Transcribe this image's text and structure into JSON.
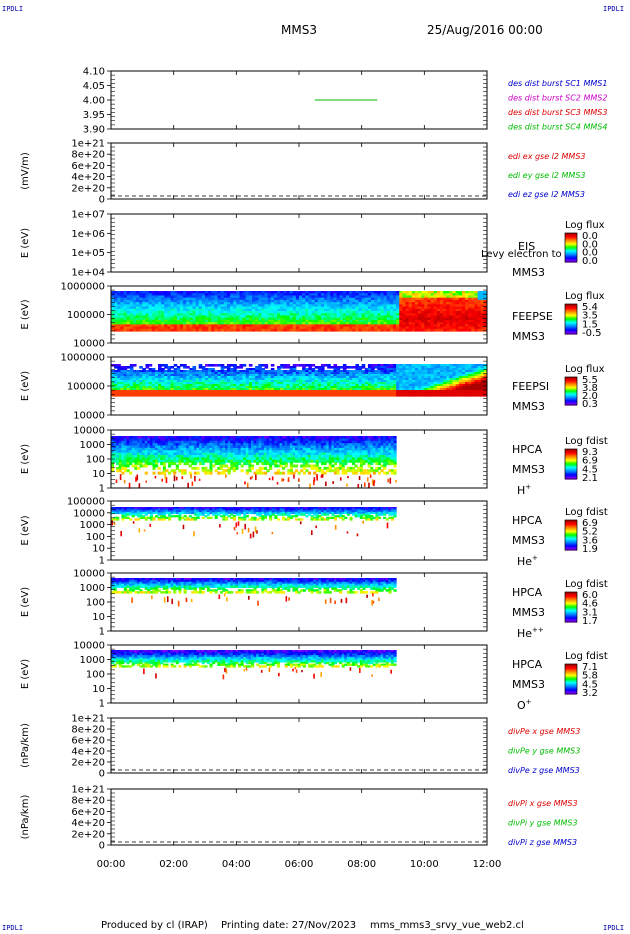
{
  "header": {
    "corner_label": "IPDLI",
    "spacecraft": "MMS3",
    "datetime": "25/Aug/2016 00:00"
  },
  "footer": {
    "producer": "Produced by cl (IRAP)",
    "printing": "Printing date: 27/Nov/2023",
    "script": "mms_mms3_srvy_vue_web2.cl"
  },
  "colors": {
    "mms1": "#0000cc",
    "mms2": "#cc00cc",
    "mms3": "#dd0000",
    "mms4": "#00bb00",
    "x": "#dd0000",
    "y": "#00bb00",
    "z": "#0000cc",
    "colorbar": [
      "#8b00ff",
      "#0000ff",
      "#0088ff",
      "#00ffff",
      "#00ff00",
      "#ffff00",
      "#ff8800",
      "#ff0000",
      "#aa0000"
    ]
  },
  "chart_data": [
    {
      "id": "burst",
      "type": "line",
      "yticks": [
        "4.10",
        "4.05",
        "4.00",
        "3.95",
        "3.90"
      ],
      "ylim": [
        3.9,
        4.1
      ],
      "xlim": [
        0,
        12
      ],
      "legend": [
        "des dist burst SC1 MMS1",
        "des dist burst SC2 MMS2",
        "des dist burst SC3 MMS3",
        "des dist burst SC4 MMS4"
      ],
      "series": [
        {
          "x": [
            6.5,
            8.5
          ],
          "y": [
            4.0,
            4.0
          ]
        }
      ]
    },
    {
      "id": "edi",
      "type": "line",
      "ylabel": "(mV/m)",
      "yticks": [
        "1e+21",
        "8e+20",
        "6e+20",
        "4e+20",
        "2e+20",
        "0"
      ],
      "legend": [
        "edi ex gse l2 MMS3",
        "edi ey gse l2 MMS3",
        "edi ez gse l2 MMS3"
      ]
    },
    {
      "id": "eis",
      "type": "heatmap",
      "ylabel": "E (eV)",
      "yticks": [
        "1e+07",
        "1e+06",
        "1e+05",
        "1e+04"
      ],
      "instrument": "EIS",
      "spacecraft": "MMS3",
      "note": "Levy electron to",
      "cbar_title": "Log flux",
      "cbar_ticks": [
        "0.0",
        "0.0",
        "0.0",
        "0.0"
      ]
    },
    {
      "id": "feepse",
      "type": "heatmap",
      "ylabel": "E (eV)",
      "yticks": [
        "1000000",
        "100000",
        "10000"
      ],
      "instrument": "FEEPSE",
      "spacecraft": "MMS3",
      "cbar_title": "Log flux",
      "cbar_ticks": [
        "5.4",
        "3.5",
        "1.5",
        "-0.5"
      ],
      "xlim": [
        0,
        12
      ]
    },
    {
      "id": "feepsi",
      "type": "heatmap",
      "ylabel": "E (eV)",
      "yticks": [
        "1000000",
        "100000",
        "10000"
      ],
      "instrument": "FEEPSI",
      "spacecraft": "MMS3",
      "cbar_title": "Log flux",
      "cbar_ticks": [
        "5.5",
        "3.8",
        "2.0",
        "0.3"
      ],
      "xlim": [
        0,
        12
      ]
    },
    {
      "id": "hpca_h",
      "type": "heatmap",
      "ylabel": "E (eV)",
      "yticks": [
        "10000",
        "1000",
        "100",
        "10",
        "1"
      ],
      "instrument": "HPCA",
      "spacecraft": "MMS3",
      "species": "H",
      "species_sup": "+",
      "cbar_title": "Log fdist",
      "cbar_ticks": [
        "9.3",
        "6.9",
        "4.5",
        "2.1"
      ],
      "data_end_hour": 9.1
    },
    {
      "id": "hpca_he1",
      "type": "heatmap",
      "ylabel": "E (eV)",
      "yticks": [
        "100000",
        "10000",
        "1000",
        "100",
        "10",
        "1"
      ],
      "instrument": "HPCA",
      "spacecraft": "MMS3",
      "species": "He",
      "species_sup": "+",
      "cbar_title": "Log fdist",
      "cbar_ticks": [
        "6.9",
        "5.2",
        "3.6",
        "1.9"
      ],
      "data_end_hour": 9.1
    },
    {
      "id": "hpca_he2",
      "type": "heatmap",
      "ylabel": "E (eV)",
      "yticks": [
        "10000",
        "1000",
        "100",
        "10",
        "1"
      ],
      "instrument": "HPCA",
      "spacecraft": "MMS3",
      "species": "He",
      "species_sup": "++",
      "cbar_title": "Log fdist",
      "cbar_ticks": [
        "6.0",
        "4.6",
        "3.1",
        "1.7"
      ],
      "data_end_hour": 9.1
    },
    {
      "id": "hpca_o",
      "type": "heatmap",
      "ylabel": "E (eV)",
      "yticks": [
        "10000",
        "1000",
        "100",
        "10",
        "1"
      ],
      "instrument": "HPCA",
      "spacecraft": "MMS3",
      "species": "O",
      "species_sup": "+",
      "cbar_title": "Log fdist",
      "cbar_ticks": [
        "7.1",
        "5.8",
        "4.5",
        "3.2"
      ],
      "data_end_hour": 9.1
    },
    {
      "id": "divpe",
      "type": "line",
      "ylabel": "(nPa/km)",
      "yticks": [
        "1e+21",
        "8e+20",
        "6e+20",
        "4e+20",
        "2e+20",
        "0"
      ],
      "legend": [
        "divPe x gse MMS3",
        "divPe y gse MMS3",
        "divPe z gse MMS3"
      ]
    },
    {
      "id": "divpi",
      "type": "line",
      "ylabel": "(nPa/km)",
      "yticks": [
        "1e+21",
        "8e+20",
        "6e+20",
        "4e+20",
        "2e+20",
        "0"
      ],
      "legend": [
        "divPi x gse MMS3",
        "divPi y gse MMS3",
        "divPi z gse MMS3"
      ],
      "xticks": [
        "00:00",
        "02:00",
        "04:00",
        "06:00",
        "08:00",
        "10:00",
        "12:00"
      ]
    }
  ]
}
